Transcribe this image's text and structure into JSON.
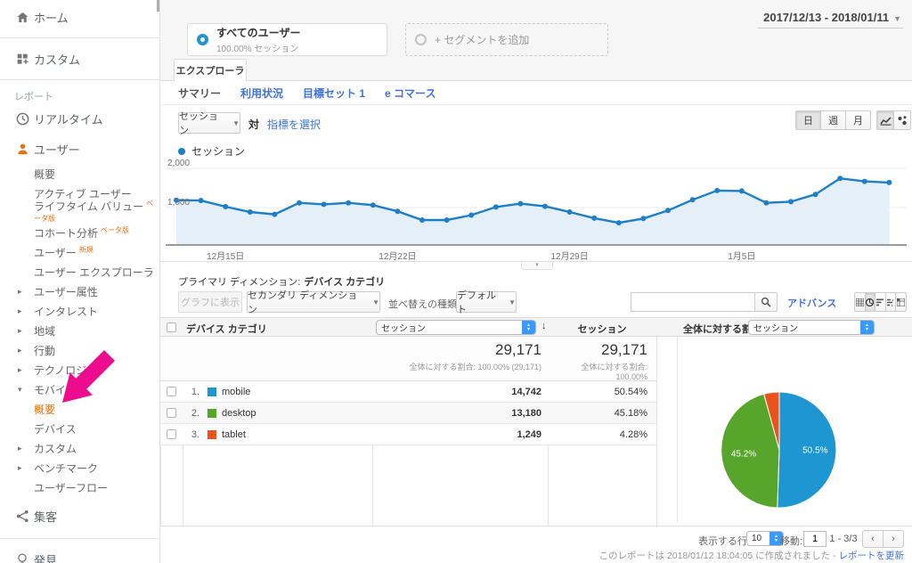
{
  "header": {
    "date_range": "2017/12/13 - 2018/01/11"
  },
  "segments": {
    "all_users_title": "すべてのユーザー",
    "all_users_subtitle": "100.00% セッション",
    "add_segment": "+ セグメントを追加"
  },
  "explorer_tab": "エクスプローラ",
  "subnav": {
    "items": [
      "サマリー",
      "利用状況",
      "目標セット 1",
      "e コマース"
    ]
  },
  "controls": {
    "metric_select": "セッション",
    "vs_label": "対",
    "select_metric_link": "指標を選択",
    "granularity": [
      "日",
      "週",
      "月"
    ]
  },
  "legend_label": "セッション",
  "chart_data": [
    {
      "type": "line",
      "title": "セッション",
      "x_tick_labels": [
        "12月15日",
        "12月22日",
        "12月29日",
        "1月5日"
      ],
      "x_tick_indices": [
        2,
        9,
        16,
        23
      ],
      "ytick_labels": [
        "2,000",
        "1,000"
      ],
      "yticks": [
        2000,
        1000
      ],
      "ylim": [
        0,
        2000
      ],
      "series": [
        {
          "name": "セッション",
          "values": [
            1170,
            1160,
            1000,
            860,
            800,
            1100,
            1060,
            1100,
            1040,
            880,
            650,
            650,
            780,
            990,
            1080,
            1010,
            860,
            700,
            580,
            690,
            900,
            1180,
            1420,
            1410,
            1100,
            1130,
            1320,
            1740,
            1660,
            1630
          ]
        }
      ]
    },
    {
      "type": "pie",
      "categories": [
        "mobile",
        "desktop",
        "tablet"
      ],
      "values": [
        50.54,
        45.18,
        4.28
      ],
      "slice_labels": [
        "50.5%",
        "45.2%",
        ""
      ],
      "colors": [
        "#1e96d2",
        "#58a52c",
        "#e8541c"
      ]
    }
  ],
  "primary_dimension": {
    "label": "プライマリ ディメンション:",
    "value": "デバイス カテゴリ"
  },
  "toolbar": {
    "plot_rows": "グラフに表示",
    "secondary_dimension": "セカンダリ ディメンション",
    "sort_label": "並べ替えの種類:",
    "sort_value": "デフォルト",
    "advanced_link": "アドバンス"
  },
  "table": {
    "device_header": "デバイス カテゴリ",
    "metric_header": "セッション",
    "sessions_header": "セッション",
    "summary": {
      "sessions": "29,171",
      "share": "全体に対する割合: 100.00% (29,171)",
      "sessions2": "29,171",
      "share2_line1": "全体に対する割合: 100.00%",
      "share2_line2": "(29,171)"
    },
    "rows": [
      {
        "rank": "1.",
        "label": "mobile",
        "color": "#1e96d2",
        "sessions": "14,742",
        "percent": "50.54%"
      },
      {
        "rank": "2.",
        "label": "desktop",
        "color": "#58a52c",
        "sessions": "13,180",
        "percent": "45.18%"
      },
      {
        "rank": "3.",
        "label": "tablet",
        "color": "#e8541c",
        "sessions": "1,249",
        "percent": "4.28%"
      }
    ]
  },
  "pie_panel": {
    "label": "全体に対する割合:",
    "value": "セッション"
  },
  "pagination": {
    "rows_label": "表示する行数:",
    "rows_value": "10",
    "goto_label": "移動:",
    "goto_value": "1",
    "range": "1 - 3/3"
  },
  "footer": {
    "generated": "このレポートは 2018/01/12 18:04:05 に作成されました -",
    "refresh_link": "レポートを更新"
  },
  "sidebar": {
    "items": [
      {
        "type": "top",
        "icon": "home",
        "label": "ホーム"
      },
      {
        "type": "divider"
      },
      {
        "type": "top",
        "icon": "custom",
        "label": "カスタム"
      },
      {
        "type": "divider"
      },
      {
        "type": "section",
        "label": "レポート"
      },
      {
        "type": "top",
        "icon": "clock",
        "label": "リアルタイム",
        "h": "h34"
      },
      {
        "type": "top",
        "icon": "person",
        "label": "ユーザー",
        "active": true,
        "h": "h34"
      },
      {
        "type": "sub",
        "label": "概要"
      },
      {
        "type": "sub",
        "label": "アクティブ ユーザー"
      },
      {
        "type": "sub",
        "label": "ライフタイム バリュー",
        "badge": "ベータ版"
      },
      {
        "type": "sub",
        "label": "コホート分析",
        "badge": "ベータ版"
      },
      {
        "type": "sub",
        "label": "ユーザー",
        "badge": "新規"
      },
      {
        "type": "sub",
        "label": "ユーザー エクスプローラ"
      },
      {
        "type": "expand",
        "label": "ユーザー属性"
      },
      {
        "type": "expand",
        "label": "インタレスト"
      },
      {
        "type": "expand",
        "label": "地域"
      },
      {
        "type": "expand",
        "label": "行動"
      },
      {
        "type": "expand",
        "label": "テクノロジー"
      },
      {
        "type": "expand",
        "label": "モバイル",
        "expanded": true
      },
      {
        "type": "sub",
        "label": "概要",
        "active": true
      },
      {
        "type": "sub",
        "label": "デバイス"
      },
      {
        "type": "expand",
        "label": "カスタム"
      },
      {
        "type": "expand",
        "label": "ベンチマーク"
      },
      {
        "type": "sub",
        "label": "ユーザーフロー"
      },
      {
        "type": "top",
        "icon": "acquisition",
        "label": "集客",
        "h": "h42"
      },
      {
        "type": "divider"
      },
      {
        "type": "top",
        "icon": "bulb",
        "label": "発見"
      },
      {
        "type": "divider"
      }
    ]
  },
  "colors": {
    "accent_orange": "#e8710a",
    "link_blue": "#4272d7",
    "line_blue": "#1c7fc7",
    "area_blue": "#e4eff8",
    "arrow_pink": "#ee0c8e",
    "stepper_blue": "#3b99fc"
  }
}
